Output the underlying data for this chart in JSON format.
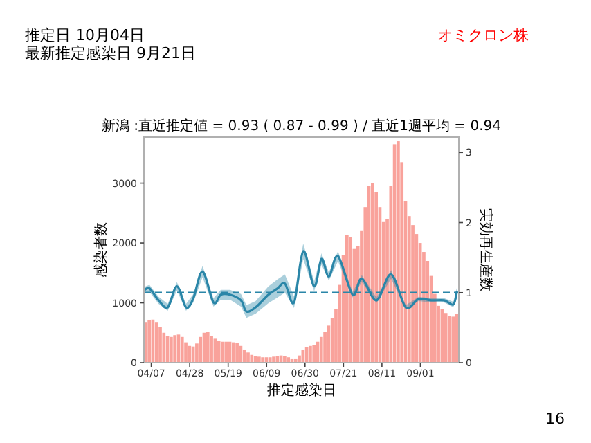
{
  "chart_data": {
    "type": "bar",
    "title": "新潟 :直近推定値 = 0.93 ( 0.87 - 0.99 ) / 直近1週平均 = 0.94",
    "xlabel": "推定感染日",
    "ylabel": "感染者数",
    "y2label": "実効再生産数",
    "annotations": [
      "推定日 10月04日",
      "最新推定感染日 9月21日",
      "オミクロン株",
      "16"
    ],
    "xlim": [
      "--04-03",
      "--09-22"
    ],
    "xticks": [
      {
        "value": "--04-07",
        "label": "04/07"
      },
      {
        "value": "--04-28",
        "label": "04/28"
      },
      {
        "value": "--05-19",
        "label": "05/19"
      },
      {
        "value": "--06-09",
        "label": "06/09"
      },
      {
        "value": "--06-30",
        "label": "06/30"
      },
      {
        "value": "--07-21",
        "label": "07/21"
      },
      {
        "value": "--08-11",
        "label": "08/11"
      },
      {
        "value": "--09-01",
        "label": "09/01"
      }
    ],
    "ylim": [
      0,
      3770
    ],
    "yticks": [
      0,
      1000,
      2000,
      3000
    ],
    "y2lim": [
      0,
      3.22
    ],
    "y2ticks": [
      0,
      1,
      2,
      3
    ],
    "ref_lines": [
      {
        "axis": "y2",
        "value": 1,
        "color": "#2a86a8",
        "line_style": "dashed"
      }
    ],
    "series": [
      {
        "color": "#f9a29b",
        "x": [
          "--04-03",
          "--04-05",
          "--04-07",
          "--04-09",
          "--04-11",
          "--04-13",
          "--04-15",
          "--04-17",
          "--04-19",
          "--04-21",
          "--04-23",
          "--04-25",
          "--04-27",
          "--04-29",
          "--05-01",
          "--05-03",
          "--05-05",
          "--05-07",
          "--05-09",
          "--05-11",
          "--05-13",
          "--05-15",
          "--05-17",
          "--05-19",
          "--05-21",
          "--05-23",
          "--05-25",
          "--05-27",
          "--05-29",
          "--05-31",
          "--06-02",
          "--06-04",
          "--06-06",
          "--06-08",
          "--06-10",
          "--06-12",
          "--06-14",
          "--06-16",
          "--06-18",
          "--06-20",
          "--06-22",
          "--06-24",
          "--06-26",
          "--06-28",
          "--06-30",
          "--07-02",
          "--07-04",
          "--07-06",
          "--07-08",
          "--07-10",
          "--07-12",
          "--07-14",
          "--07-16",
          "--07-18",
          "--07-20",
          "--07-22",
          "--07-24",
          "--07-26",
          "--07-28",
          "--07-30",
          "--08-01",
          "--08-03",
          "--08-05",
          "--08-07",
          "--08-09",
          "--08-11",
          "--08-13",
          "--08-15",
          "--08-17",
          "--08-19",
          "--08-21",
          "--08-23",
          "--08-25",
          "--08-27",
          "--08-29",
          "--08-31",
          "--09-02",
          "--09-04",
          "--09-06",
          "--09-08",
          "--09-10",
          "--09-12",
          "--09-14",
          "--09-16",
          "--09-18",
          "--09-20"
        ],
        "values": [
          680,
          710,
          720,
          680,
          600,
          500,
          440,
          430,
          460,
          470,
          430,
          340,
          280,
          270,
          320,
          430,
          500,
          510,
          450,
          400,
          360,
          350,
          350,
          350,
          340,
          330,
          280,
          220,
          170,
          130,
          110,
          100,
          90,
          90,
          90,
          100,
          110,
          120,
          110,
          90,
          70,
          70,
          120,
          220,
          260,
          280,
          290,
          350,
          430,
          520,
          620,
          750,
          900,
          1300,
          1800,
          2130,
          2100,
          1900,
          1950,
          2200,
          2600,
          2950,
          3000,
          2850,
          2600,
          2350,
          2400,
          2950,
          3650,
          3700,
          3350,
          2700,
          2450,
          2300,
          2150,
          2000,
          1850,
          1700,
          1450,
          1150,
          950,
          900,
          830,
          780,
          770,
          820
        ]
      },
      {
        "type": "line",
        "axis": "y2",
        "color": "#2a86a8",
        "x": [
          "--04-03",
          "--04-06",
          "--04-11",
          "--04-16",
          "--04-21",
          "--04-26",
          "--04-30",
          "--05-05",
          "--05-11",
          "--05-15",
          "--05-20",
          "--05-26",
          "--05-29",
          "--06-03",
          "--06-10",
          "--06-15",
          "--06-19",
          "--06-24",
          "--06-29",
          "--07-05",
          "--07-09",
          "--07-13",
          "--07-18",
          "--07-26",
          "--07-31",
          "--08-08",
          "--08-16",
          "--08-24",
          "--08-31",
          "--09-07",
          "--09-14",
          "--09-19",
          "--09-21"
        ],
        "values": [
          1.03,
          1.06,
          0.89,
          0.79,
          1.09,
          0.79,
          0.92,
          1.3,
          0.86,
          0.97,
          0.97,
          0.89,
          0.73,
          0.79,
          0.97,
          1.06,
          1.13,
          0.86,
          1.59,
          1.09,
          1.48,
          1.23,
          1.52,
          0.97,
          1.2,
          0.89,
          1.26,
          0.79,
          0.91,
          0.89,
          0.89,
          0.83,
          1.02
        ],
        "lower": [
          0.98,
          1.01,
          0.84,
          0.74,
          1.03,
          0.74,
          0.86,
          1.22,
          0.8,
          0.9,
          0.9,
          0.8,
          0.64,
          0.7,
          0.85,
          0.93,
          1.0,
          0.78,
          1.48,
          1.02,
          1.4,
          1.17,
          1.45,
          0.93,
          1.15,
          0.85,
          1.2,
          0.76,
          0.88,
          0.86,
          0.86,
          0.79,
          0.96
        ],
        "upper": [
          1.08,
          1.11,
          0.94,
          0.84,
          1.15,
          0.84,
          0.98,
          1.38,
          0.92,
          1.04,
          1.04,
          0.98,
          0.82,
          0.88,
          1.09,
          1.19,
          1.26,
          0.94,
          1.7,
          1.16,
          1.56,
          1.29,
          1.59,
          1.01,
          1.25,
          0.93,
          1.32,
          0.82,
          0.94,
          0.92,
          0.92,
          0.87,
          1.08
        ]
      }
    ]
  }
}
